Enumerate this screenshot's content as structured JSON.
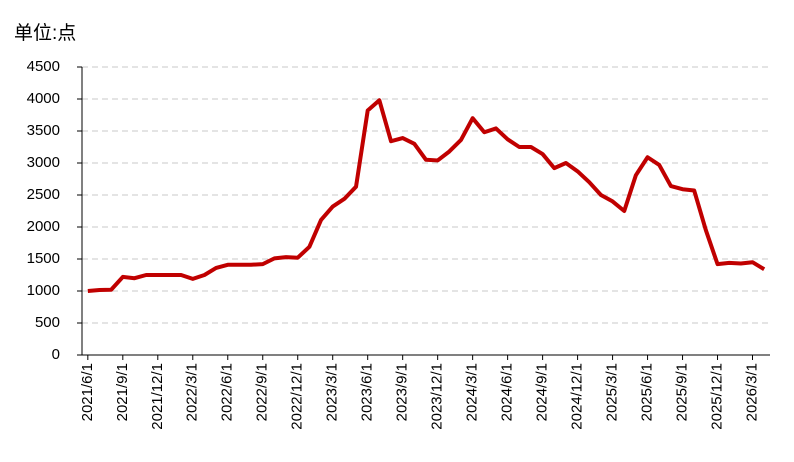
{
  "chart_data": {
    "type": "line",
    "title": "单位:点",
    "categories": [
      "2021/6/1",
      null,
      null,
      "2021/9/1",
      null,
      null,
      "2021/12/1",
      null,
      null,
      "2022/3/1",
      null,
      null,
      "2022/6/1",
      null,
      null,
      "2022/9/1",
      null,
      null,
      "2022/12/1",
      null,
      null,
      "2023/3/1",
      null,
      null,
      "2023/6/1",
      null,
      null,
      "2023/9/1",
      null,
      null,
      "2023/12/1",
      null,
      null,
      "2024/3/1",
      null,
      null,
      "2024/6/1",
      null,
      null,
      "2024/9/1",
      null,
      null,
      "2024/12/1",
      null,
      null,
      "2025/3/1",
      null,
      null,
      "2025/6/1",
      null,
      null,
      "2025/9/1",
      null,
      null,
      "2025/12/1",
      null,
      null,
      "2026/3/1",
      null
    ],
    "values": [
      1000,
      1015,
      1020,
      1220,
      1200,
      1250,
      1250,
      1250,
      1250,
      1190,
      1250,
      1360,
      1410,
      1410,
      1410,
      1420,
      1510,
      1530,
      1520,
      1690,
      2110,
      2320,
      2440,
      2630,
      3820,
      3980,
      3340,
      3390,
      3300,
      3050,
      3040,
      3180,
      3360,
      3700,
      3480,
      3540,
      3370,
      3250,
      3250,
      3140,
      2920,
      3000,
      2870,
      2700,
      2500,
      2400,
      2250,
      2810,
      3090,
      2970,
      2640,
      2590,
      2570,
      1950,
      1420,
      1440,
      1430,
      1450,
      1340
    ],
    "color": "#c00000",
    "ylim": [
      0,
      4500
    ],
    "yticks": [
      0,
      500,
      1000,
      1500,
      2000,
      2500,
      3000,
      3500,
      4000,
      4500
    ],
    "grid": true
  }
}
